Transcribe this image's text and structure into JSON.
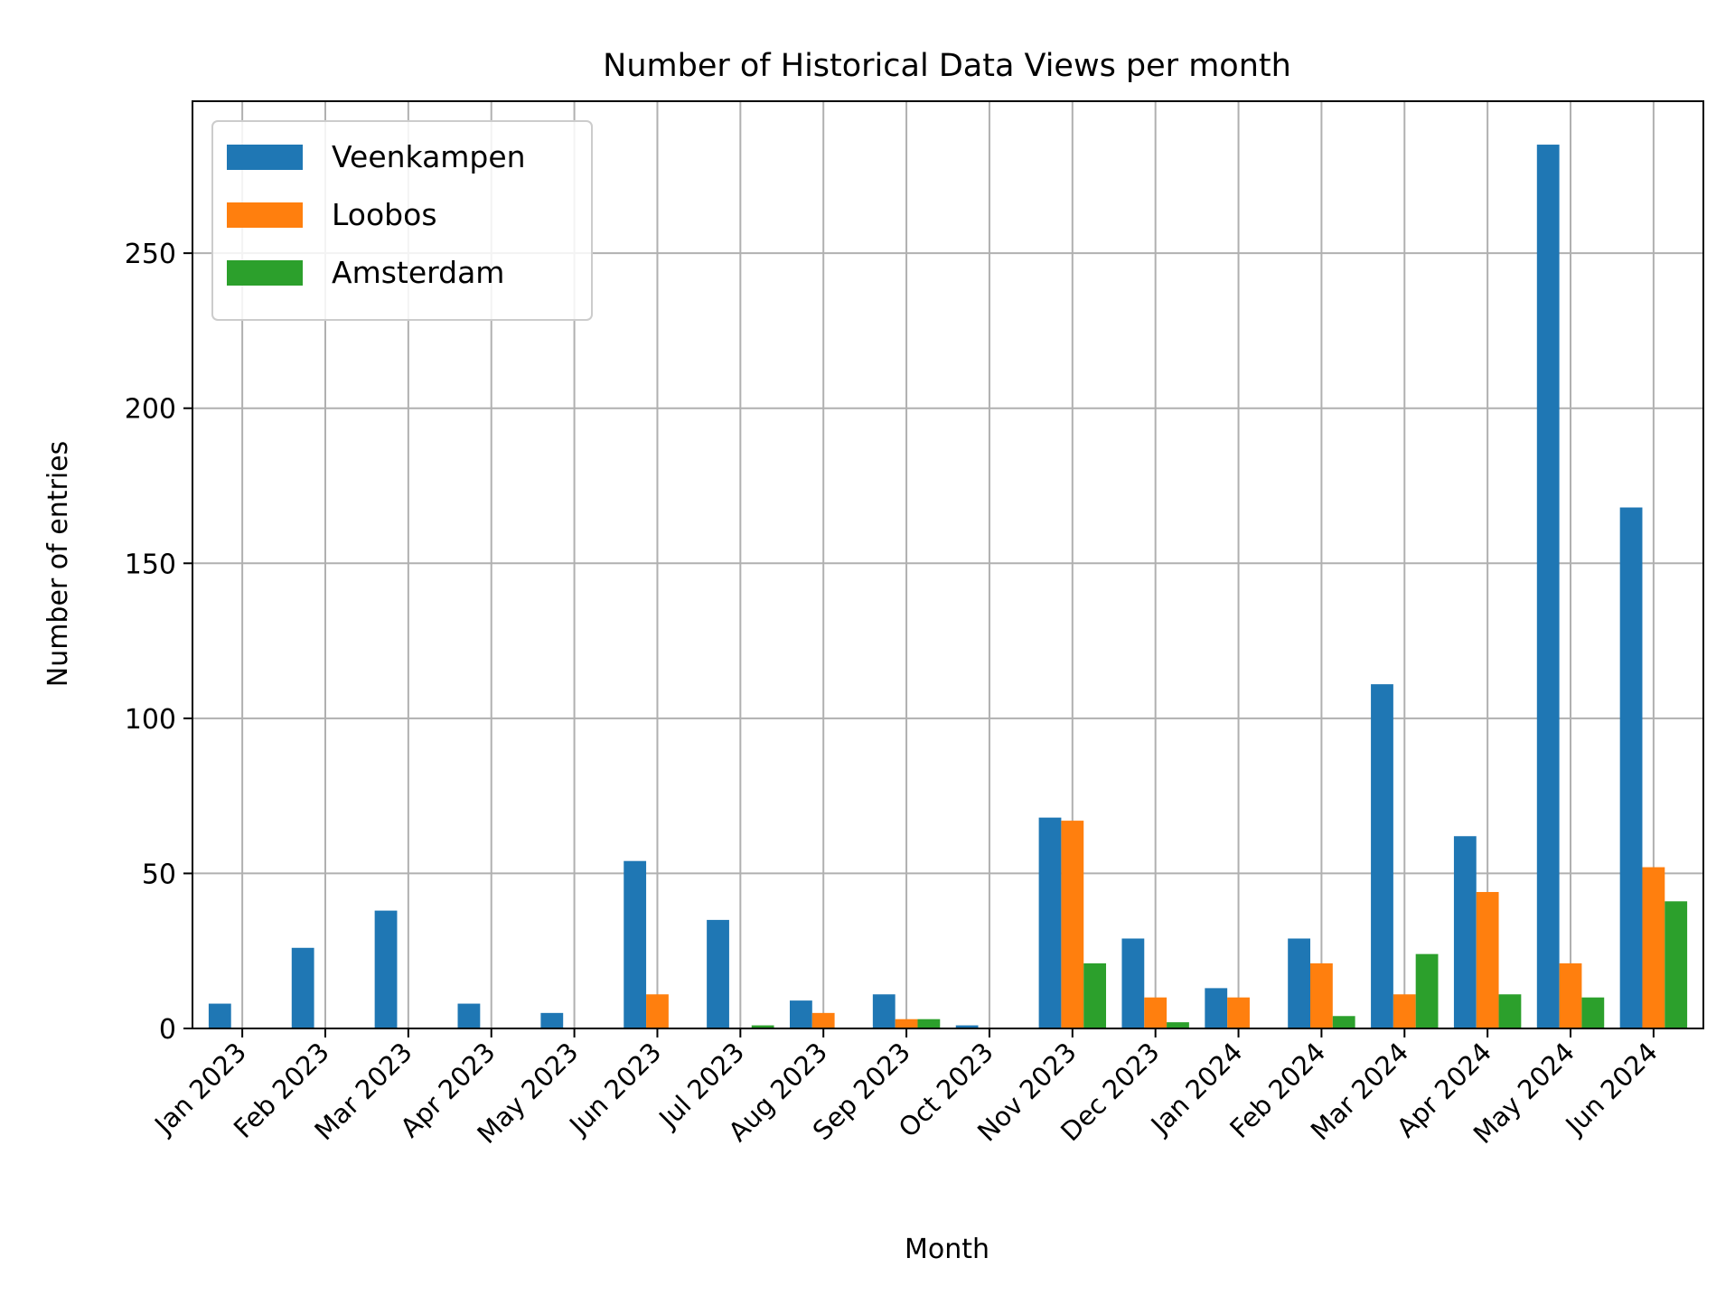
{
  "chart_data": {
    "type": "bar",
    "title": "Number of Historical Data Views per month",
    "xlabel": "Month",
    "ylabel": "Number of entries",
    "categories": [
      "Jan 2023",
      "Feb 2023",
      "Mar 2023",
      "Apr 2023",
      "May 2023",
      "Jun 2023",
      "Jul 2023",
      "Aug 2023",
      "Sep 2023",
      "Oct 2023",
      "Nov 2023",
      "Dec 2023",
      "Jan 2024",
      "Feb 2024",
      "Mar 2024",
      "Apr 2024",
      "May 2024",
      "Jun 2024"
    ],
    "series": [
      {
        "name": "Veenkampen",
        "color": "#1f77b4",
        "values": [
          8,
          26,
          38,
          8,
          5,
          54,
          35,
          9,
          11,
          1,
          68,
          29,
          13,
          29,
          111,
          62,
          285,
          168
        ]
      },
      {
        "name": "Loobos",
        "color": "#ff7f0e",
        "values": [
          0,
          0,
          0,
          0,
          0,
          11,
          0,
          5,
          3,
          0,
          67,
          10,
          10,
          21,
          11,
          44,
          21,
          52
        ]
      },
      {
        "name": "Amsterdam",
        "color": "#2ca02c",
        "values": [
          0,
          0,
          0,
          0,
          0,
          0,
          1,
          0,
          3,
          0,
          21,
          2,
          0,
          4,
          24,
          11,
          10,
          41
        ]
      }
    ],
    "ylim": [
      0,
      299
    ],
    "yticks": [
      0,
      50,
      100,
      150,
      200,
      250
    ],
    "grid": true,
    "legend_position": "upper left"
  }
}
